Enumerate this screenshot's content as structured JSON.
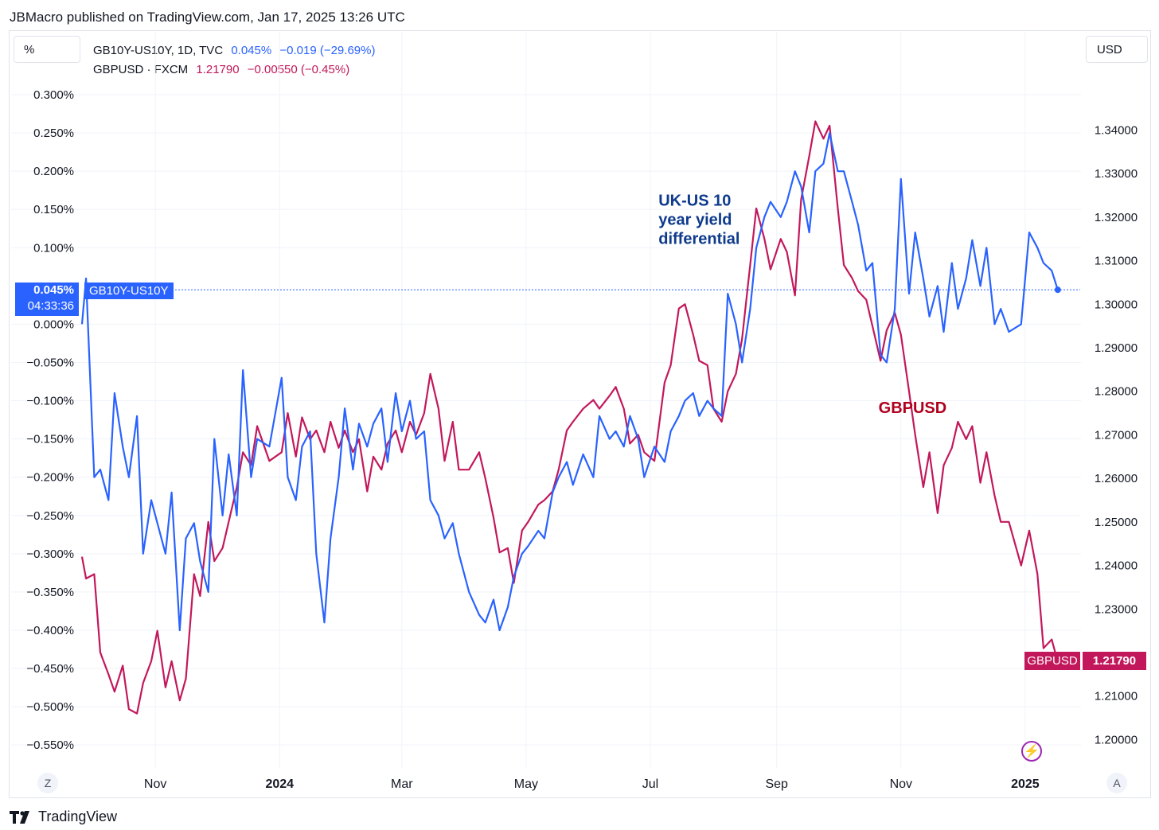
{
  "header": {
    "title": "JBMacro published on TradingView.com, Jan 17, 2025 13:26 UTC"
  },
  "controls": {
    "left_unit": "%",
    "right_unit": "USD",
    "z_button": "Z",
    "a_button": "A",
    "lightning_icon": "lightning-icon"
  },
  "legend": {
    "series1_name": "GB10Y-US10Y, 1D, TVC",
    "series1_last": "0.045%",
    "series1_change": "−0.019 (−29.69%)",
    "series2_name": "GBPUSD · FXCM",
    "series2_last": "1.21790",
    "series2_change": "−0.00550 (−0.45%)"
  },
  "badges": {
    "left_value": "0.045%",
    "left_countdown": "04:33:36",
    "left_name": "GB10Y-US10Y",
    "right_name": "GBPUSD",
    "right_value": "1.21790"
  },
  "footer": {
    "brand": "TradingView",
    "logo_icon": "tradingview-logo-icon"
  },
  "colors": {
    "spread": "#2962ff",
    "gbpusd": "#c2185b",
    "annotation_spread": "#0d3a8c",
    "annotation_gbpusd": "#b0001e"
  },
  "chart_data": {
    "type": "line",
    "title": "",
    "x_tick_labels": [
      "Nov",
      "2024",
      "Mar",
      "May",
      "Jul",
      "Sep",
      "Nov",
      "2025"
    ],
    "x_tick_dates": [
      "2023-11-01",
      "2024-01-01",
      "2024-03-01",
      "2024-05-01",
      "2024-07-01",
      "2024-09-01",
      "2024-11-01",
      "2025-01-01"
    ],
    "xlim": [
      "2023-09-26",
      "2025-01-28"
    ],
    "left_axis": {
      "unit": "%",
      "ylim": [
        -0.58,
        0.325
      ],
      "ticks": [
        0.3,
        0.25,
        0.2,
        0.15,
        0.1,
        0.0,
        -0.05,
        -0.1,
        -0.15,
        -0.2,
        -0.25,
        -0.3,
        -0.35,
        -0.4,
        -0.45,
        -0.5,
        -0.55
      ],
      "tick_labels": [
        "0.300%",
        "0.250%",
        "0.200%",
        "0.150%",
        "0.100%",
        "0.000%",
        "−0.050%",
        "−0.100%",
        "−0.150%",
        "−0.200%",
        "−0.250%",
        "−0.300%",
        "−0.350%",
        "−0.400%",
        "−0.450%",
        "−0.500%",
        "−0.550%"
      ]
    },
    "right_axis": {
      "unit": "USD",
      "ylim": [
        1.1935,
        1.3525
      ],
      "ticks": [
        1.34,
        1.33,
        1.32,
        1.31,
        1.3,
        1.29,
        1.28,
        1.27,
        1.26,
        1.25,
        1.24,
        1.23,
        1.21,
        1.2
      ],
      "tick_labels": [
        "1.34000",
        "1.33000",
        "1.32000",
        "1.31000",
        "1.30000",
        "1.29000",
        "1.28000",
        "1.27000",
        "1.26000",
        "1.25000",
        "1.24000",
        "1.23000",
        "1.21000",
        "1.20000"
      ]
    },
    "last_value_line": 0.045,
    "annotations": [
      {
        "text_lines": [
          "UK-US 10",
          "year yield",
          "differential"
        ],
        "series": "spread",
        "at_date": "2024-07-05",
        "at_value": 0.155
      },
      {
        "text_lines": [
          "GBPUSD"
        ],
        "series": "gbpusd",
        "at_date": "2024-10-21",
        "at_value": 1.275
      }
    ],
    "series": [
      {
        "name": "GB10Y-US10Y, 1D, TVC",
        "axis": "left",
        "color": "#2962ff",
        "x": [
          "2023-09-26",
          "2023-09-28",
          "2023-10-02",
          "2023-10-05",
          "2023-10-09",
          "2023-10-12",
          "2023-10-16",
          "2023-10-19",
          "2023-10-23",
          "2023-10-26",
          "2023-10-30",
          "2023-11-02",
          "2023-11-06",
          "2023-11-09",
          "2023-11-13",
          "2023-11-16",
          "2023-11-20",
          "2023-11-23",
          "2023-11-27",
          "2023-11-30",
          "2023-12-04",
          "2023-12-07",
          "2023-12-11",
          "2023-12-14",
          "2023-12-18",
          "2023-12-21",
          "2023-12-27",
          "2024-01-02",
          "2024-01-05",
          "2024-01-09",
          "2024-01-12",
          "2024-01-16",
          "2024-01-19",
          "2024-01-23",
          "2024-01-26",
          "2024-01-30",
          "2024-02-02",
          "2024-02-06",
          "2024-02-09",
          "2024-02-13",
          "2024-02-16",
          "2024-02-20",
          "2024-02-23",
          "2024-02-27",
          "2024-03-01",
          "2024-03-05",
          "2024-03-08",
          "2024-03-12",
          "2024-03-15",
          "2024-03-19",
          "2024-03-22",
          "2024-03-26",
          "2024-03-29",
          "2024-04-03",
          "2024-04-08",
          "2024-04-11",
          "2024-04-15",
          "2024-04-18",
          "2024-04-22",
          "2024-04-25",
          "2024-04-29",
          "2024-05-02",
          "2024-05-07",
          "2024-05-10",
          "2024-05-14",
          "2024-05-17",
          "2024-05-21",
          "2024-05-24",
          "2024-05-29",
          "2024-06-03",
          "2024-06-06",
          "2024-06-11",
          "2024-06-14",
          "2024-06-18",
          "2024-06-21",
          "2024-06-25",
          "2024-06-28",
          "2024-07-03",
          "2024-07-08",
          "2024-07-11",
          "2024-07-15",
          "2024-07-18",
          "2024-07-22",
          "2024-07-25",
          "2024-07-29",
          "2024-08-01",
          "2024-08-05",
          "2024-08-08",
          "2024-08-12",
          "2024-08-15",
          "2024-08-19",
          "2024-08-22",
          "2024-08-26",
          "2024-08-29",
          "2024-09-03",
          "2024-09-06",
          "2024-09-10",
          "2024-09-13",
          "2024-09-17",
          "2024-09-20",
          "2024-09-24",
          "2024-09-27",
          "2024-10-01",
          "2024-10-04",
          "2024-10-08",
          "2024-10-11",
          "2024-10-15",
          "2024-10-18",
          "2024-10-22",
          "2024-10-25",
          "2024-10-29",
          "2024-11-01",
          "2024-11-05",
          "2024-11-08",
          "2024-11-12",
          "2024-11-15",
          "2024-11-19",
          "2024-11-22",
          "2024-11-26",
          "2024-11-29",
          "2024-12-03",
          "2024-12-06",
          "2024-12-10",
          "2024-12-13",
          "2024-12-17",
          "2024-12-20",
          "2024-12-24",
          "2024-12-30",
          "2025-01-03",
          "2025-01-07",
          "2025-01-10",
          "2025-01-14",
          "2025-01-17"
        ],
        "y": [
          0.0,
          0.06,
          -0.2,
          -0.19,
          -0.23,
          -0.09,
          -0.16,
          -0.2,
          -0.12,
          -0.3,
          -0.23,
          -0.26,
          -0.3,
          -0.22,
          -0.4,
          -0.28,
          -0.26,
          -0.31,
          -0.35,
          -0.15,
          -0.25,
          -0.17,
          -0.25,
          -0.06,
          -0.2,
          -0.15,
          -0.16,
          -0.07,
          -0.2,
          -0.23,
          -0.16,
          -0.14,
          -0.3,
          -0.39,
          -0.28,
          -0.2,
          -0.11,
          -0.19,
          -0.13,
          -0.16,
          -0.13,
          -0.11,
          -0.18,
          -0.09,
          -0.14,
          -0.1,
          -0.15,
          -0.14,
          -0.23,
          -0.25,
          -0.28,
          -0.26,
          -0.3,
          -0.35,
          -0.38,
          -0.39,
          -0.36,
          -0.4,
          -0.37,
          -0.33,
          -0.3,
          -0.29,
          -0.27,
          -0.28,
          -0.22,
          -0.2,
          -0.18,
          -0.21,
          -0.17,
          -0.2,
          -0.12,
          -0.15,
          -0.14,
          -0.16,
          -0.12,
          -0.15,
          -0.2,
          -0.16,
          -0.18,
          -0.14,
          -0.12,
          -0.1,
          -0.09,
          -0.12,
          -0.1,
          -0.11,
          -0.12,
          0.04,
          0.0,
          -0.05,
          0.02,
          0.1,
          0.14,
          0.16,
          0.14,
          0.16,
          0.2,
          0.18,
          0.12,
          0.2,
          0.21,
          0.25,
          0.2,
          0.2,
          0.16,
          0.13,
          0.07,
          0.08,
          -0.04,
          -0.05,
          0.02,
          0.19,
          0.04,
          0.12,
          0.06,
          0.01,
          0.05,
          -0.01,
          0.08,
          0.02,
          0.06,
          0.11,
          0.05,
          0.1,
          0.0,
          0.02,
          -0.01,
          0.0,
          0.12,
          0.1,
          0.08,
          0.07,
          0.045
        ]
      },
      {
        "name": "GBPUSD · FXCM",
        "axis": "right",
        "color": "#c2185b",
        "x": [
          "2023-09-26",
          "2023-09-28",
          "2023-10-02",
          "2023-10-05",
          "2023-10-09",
          "2023-10-12",
          "2023-10-16",
          "2023-10-19",
          "2023-10-23",
          "2023-10-26",
          "2023-10-30",
          "2023-11-02",
          "2023-11-06",
          "2023-11-09",
          "2023-11-13",
          "2023-11-16",
          "2023-11-20",
          "2023-11-23",
          "2023-11-27",
          "2023-11-30",
          "2023-12-04",
          "2023-12-07",
          "2023-12-11",
          "2023-12-14",
          "2023-12-18",
          "2023-12-21",
          "2023-12-27",
          "2024-01-02",
          "2024-01-05",
          "2024-01-09",
          "2024-01-12",
          "2024-01-16",
          "2024-01-19",
          "2024-01-23",
          "2024-01-26",
          "2024-01-30",
          "2024-02-02",
          "2024-02-06",
          "2024-02-09",
          "2024-02-13",
          "2024-02-16",
          "2024-02-20",
          "2024-02-23",
          "2024-02-27",
          "2024-03-01",
          "2024-03-05",
          "2024-03-08",
          "2024-03-12",
          "2024-03-15",
          "2024-03-19",
          "2024-03-22",
          "2024-03-26",
          "2024-03-29",
          "2024-04-03",
          "2024-04-08",
          "2024-04-11",
          "2024-04-15",
          "2024-04-18",
          "2024-04-22",
          "2024-04-25",
          "2024-04-29",
          "2024-05-02",
          "2024-05-07",
          "2024-05-10",
          "2024-05-14",
          "2024-05-17",
          "2024-05-21",
          "2024-05-24",
          "2024-05-29",
          "2024-06-03",
          "2024-06-06",
          "2024-06-11",
          "2024-06-14",
          "2024-06-18",
          "2024-06-21",
          "2024-06-25",
          "2024-06-28",
          "2024-07-03",
          "2024-07-08",
          "2024-07-11",
          "2024-07-15",
          "2024-07-18",
          "2024-07-22",
          "2024-07-25",
          "2024-07-29",
          "2024-08-01",
          "2024-08-05",
          "2024-08-08",
          "2024-08-12",
          "2024-08-15",
          "2024-08-19",
          "2024-08-22",
          "2024-08-26",
          "2024-08-29",
          "2024-09-03",
          "2024-09-06",
          "2024-09-10",
          "2024-09-13",
          "2024-09-17",
          "2024-09-20",
          "2024-09-24",
          "2024-09-27",
          "2024-10-01",
          "2024-10-04",
          "2024-10-08",
          "2024-10-11",
          "2024-10-15",
          "2024-10-18",
          "2024-10-22",
          "2024-10-25",
          "2024-10-29",
          "2024-11-01",
          "2024-11-05",
          "2024-11-08",
          "2024-11-12",
          "2024-11-15",
          "2024-11-19",
          "2024-11-22",
          "2024-11-26",
          "2024-11-29",
          "2024-12-03",
          "2024-12-06",
          "2024-12-10",
          "2024-12-13",
          "2024-12-17",
          "2024-12-20",
          "2024-12-24",
          "2024-12-30",
          "2025-01-03",
          "2025-01-07",
          "2025-01-10",
          "2025-01-14",
          "2025-01-17"
        ],
        "y": [
          1.242,
          1.237,
          1.238,
          1.22,
          1.215,
          1.211,
          1.217,
          1.207,
          1.206,
          1.213,
          1.218,
          1.225,
          1.212,
          1.218,
          1.209,
          1.214,
          1.238,
          1.233,
          1.25,
          1.241,
          1.244,
          1.25,
          1.258,
          1.266,
          1.263,
          1.272,
          1.264,
          1.266,
          1.275,
          1.265,
          1.274,
          1.269,
          1.271,
          1.266,
          1.273,
          1.267,
          1.271,
          1.266,
          1.269,
          1.257,
          1.265,
          1.262,
          1.268,
          1.271,
          1.266,
          1.273,
          1.27,
          1.275,
          1.284,
          1.276,
          1.264,
          1.273,
          1.262,
          1.262,
          1.266,
          1.26,
          1.251,
          1.243,
          1.244,
          1.236,
          1.248,
          1.25,
          1.254,
          1.255,
          1.257,
          1.262,
          1.271,
          1.273,
          1.276,
          1.278,
          1.276,
          1.279,
          1.281,
          1.276,
          1.268,
          1.27,
          1.266,
          1.264,
          1.282,
          1.286,
          1.299,
          1.3,
          1.293,
          1.287,
          1.286,
          1.276,
          1.273,
          1.28,
          1.284,
          1.292,
          1.309,
          1.322,
          1.315,
          1.308,
          1.315,
          1.312,
          1.302,
          1.324,
          1.334,
          1.342,
          1.338,
          1.341,
          1.322,
          1.309,
          1.306,
          1.303,
          1.301,
          1.295,
          1.287,
          1.294,
          1.298,
          1.293,
          1.28,
          1.27,
          1.258,
          1.266,
          1.252,
          1.263,
          1.267,
          1.273,
          1.269,
          1.272,
          1.259,
          1.266,
          1.256,
          1.25,
          1.25,
          1.24,
          1.248,
          1.238,
          1.221,
          1.223,
          1.2179
        ]
      }
    ]
  }
}
